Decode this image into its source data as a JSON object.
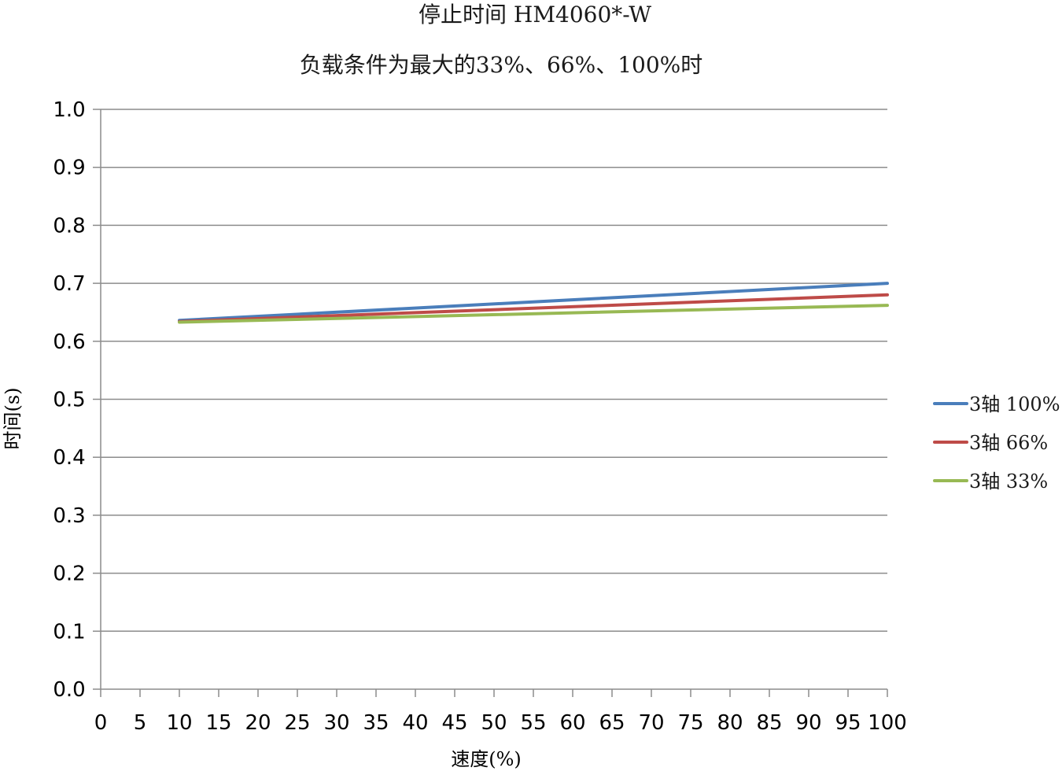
{
  "chart_data": {
    "type": "line",
    "title": "停止时间 HM4060*-W",
    "subtitle": "负载条件为最大的33%、66%、100%时",
    "xlabel": "速度(%)",
    "ylabel": "时间(s)",
    "xlim": [
      0,
      100
    ],
    "ylim": [
      0,
      1.0
    ],
    "xticks": [
      0,
      5,
      10,
      15,
      20,
      25,
      30,
      35,
      40,
      45,
      50,
      55,
      60,
      65,
      70,
      75,
      80,
      85,
      90,
      95,
      100
    ],
    "yticks": [
      0.0,
      0.1,
      0.2,
      0.3,
      0.4,
      0.5,
      0.6,
      0.7,
      0.8,
      0.9,
      1.0
    ],
    "grid": true,
    "legend_position": "right",
    "series": [
      {
        "name": "3轴 100%",
        "color": "#4a7ebb",
        "x": [
          10,
          100
        ],
        "y": [
          0.636,
          0.7
        ]
      },
      {
        "name": "3轴 66%",
        "color": "#be4b48",
        "x": [
          10,
          100
        ],
        "y": [
          0.634,
          0.68
        ]
      },
      {
        "name": "3轴 33%",
        "color": "#98b954",
        "x": [
          10,
          100
        ],
        "y": [
          0.633,
          0.662
        ]
      }
    ]
  }
}
